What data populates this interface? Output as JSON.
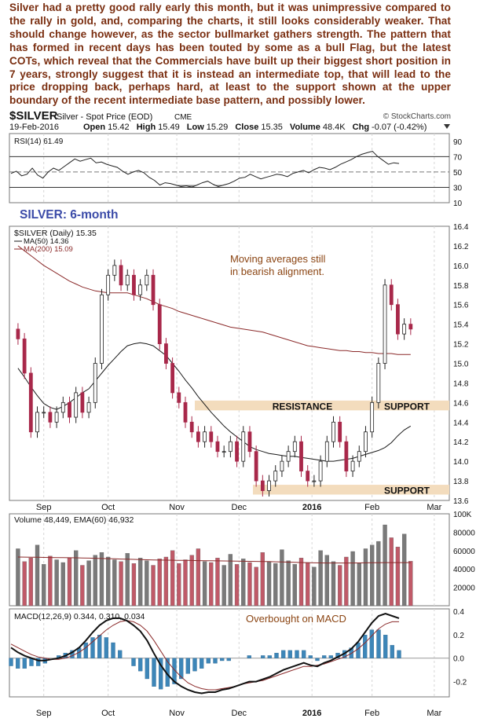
{
  "commentary": "Silver had a pretty good rally early this month, but it was unimpressive compared to the rally in gold, and, comparing the charts, it still looks considerably weaker. That should change however, as the sector bullmarket gathers strength. The pattern that has formed in recent days has been touted by some as a bull Flag, but the latest COTs, which reveal that the Commercials have built up their biggest short position in 7 years, strongly suggest that it is instead an intermediate top, that will lead to the price dropping back, perhaps hard, at least to the support shown at the upper boundary of the recent intermediate base pattern, and possibly lower.",
  "header": {
    "symbol": "$SILVER",
    "description": "Silver - Spot Price (EOD)",
    "exchange": "CME",
    "copyright": "© StockCharts.com",
    "date": "19-Feb-2016",
    "open_label": "Open",
    "open": "15.42",
    "high_label": "High",
    "high": "15.49",
    "low_label": "Low",
    "low": "15.29",
    "close_label": "Close",
    "close": "15.35",
    "volume_label": "Volume",
    "volume": "48.4K",
    "chg_label": "Chg",
    "chg": "-0.07 (-0.42%)"
  },
  "colors": {
    "up": "#222222",
    "down": "#a8284a",
    "ma50": "#1a1a1a",
    "ma200": "#8b2a2a",
    "band": "#f3dcbd",
    "annotation": "#8b4513",
    "title": "#3b4ba8",
    "vol_up": "#7a7a7a",
    "vol_down": "#c05a68",
    "macd_hist": "#3d86b8",
    "grid": "#d6d6d6"
  },
  "chart_data": [
    {
      "type": "line",
      "label": "RSI(14) 61.49",
      "ylim": [
        10,
        100
      ],
      "yticks": [
        10,
        30,
        50,
        70,
        90
      ],
      "levels": [
        70,
        50,
        30
      ],
      "series": [
        {
          "name": "RSI(14)",
          "values": [
            48,
            51,
            45,
            47,
            55,
            46,
            42,
            50,
            55,
            52,
            57,
            62,
            67,
            64,
            66,
            68,
            62,
            63,
            60,
            58,
            56,
            51,
            47,
            50,
            52,
            49,
            43,
            39,
            33,
            36,
            35,
            33,
            31,
            32,
            30,
            33,
            36,
            38,
            34,
            31,
            33,
            35,
            38,
            42,
            43,
            47,
            44,
            41,
            43,
            45,
            47,
            46,
            44,
            48,
            50,
            52,
            49,
            53,
            56,
            55,
            53,
            56,
            60,
            63,
            66,
            70,
            73,
            75,
            77,
            70,
            65,
            60,
            62,
            61
          ]
        }
      ]
    },
    {
      "type": "candlestick",
      "title": "SILVER: 6-month",
      "label": "$SILVER (Daily) 15.35",
      "ylim": [
        13.6,
        16.4
      ],
      "yticks": [
        13.6,
        13.8,
        14.0,
        14.2,
        14.4,
        14.6,
        14.8,
        15.0,
        15.2,
        15.4,
        15.6,
        15.8,
        16.0,
        16.2,
        16.4
      ],
      "x_labels": [
        "Sep",
        "Oct",
        "Nov",
        "Dec",
        "2016",
        "Feb",
        "Mar"
      ],
      "x_label_dates": [
        "2015-09-01",
        "2015-10-01",
        "2015-11-02",
        "2015-12-01",
        "2016-01-04",
        "2016-02-01",
        "2016-03-01"
      ],
      "dates": [
        "2015-08-20",
        "2015-08-23",
        "2015-08-26",
        "2015-08-29",
        "2015-09-01",
        "2015-09-04",
        "2015-09-07",
        "2015-09-10",
        "2015-09-13",
        "2015-09-16",
        "2015-09-19",
        "2015-09-22",
        "2015-09-25",
        "2015-09-28",
        "2015-10-01",
        "2015-10-04",
        "2015-10-07",
        "2015-10-10",
        "2015-10-13",
        "2015-10-16",
        "2015-10-19",
        "2015-10-22",
        "2015-10-25",
        "2015-10-28",
        "2015-10-31",
        "2015-11-03",
        "2015-11-06",
        "2015-11-09",
        "2015-11-12",
        "2015-11-15",
        "2015-11-18",
        "2015-11-21",
        "2015-11-24",
        "2015-11-27",
        "2015-11-30",
        "2015-12-03",
        "2015-12-06",
        "2015-12-09",
        "2015-12-12",
        "2015-12-15",
        "2015-12-18",
        "2015-12-21",
        "2015-12-24",
        "2015-12-27",
        "2015-12-30",
        "2016-01-02",
        "2016-01-05",
        "2016-01-08",
        "2016-01-11",
        "2016-01-14",
        "2016-01-17",
        "2016-01-20",
        "2016-01-23",
        "2016-01-26",
        "2016-01-29",
        "2016-02-01",
        "2016-02-04",
        "2016-02-07",
        "2016-02-10",
        "2016-02-13",
        "2016-02-16",
        "2016-02-19"
      ],
      "close": [
        15.25,
        14.9,
        14.3,
        14.5,
        14.5,
        14.4,
        14.5,
        14.6,
        14.45,
        14.7,
        14.5,
        14.6,
        15.0,
        15.7,
        15.9,
        16.0,
        15.8,
        15.9,
        15.7,
        15.8,
        15.9,
        15.6,
        15.2,
        15.0,
        14.7,
        14.6,
        14.4,
        14.3,
        14.2,
        14.3,
        14.2,
        14.1,
        14.1,
        14.2,
        14.0,
        14.3,
        14.1,
        13.8,
        13.7,
        13.8,
        13.9,
        14.0,
        14.1,
        14.2,
        13.9,
        13.8,
        13.8,
        14.0,
        14.2,
        14.4,
        14.2,
        13.9,
        14.0,
        14.1,
        14.3,
        14.6,
        15.0,
        15.8,
        15.6,
        15.3,
        15.4,
        15.35
      ],
      "series": [
        {
          "name": "MA(50) 14.36",
          "values": [
            14.95,
            14.86,
            14.76,
            14.67,
            14.59,
            14.55,
            14.53,
            14.56,
            14.6,
            14.65,
            14.7,
            14.74,
            14.82,
            14.9,
            14.98,
            15.05,
            15.12,
            15.18,
            15.2,
            15.21,
            15.2,
            15.18,
            15.13,
            15.08,
            15.0,
            14.92,
            14.83,
            14.75,
            14.66,
            14.58,
            14.5,
            14.43,
            14.36,
            14.3,
            14.25,
            14.2,
            14.15,
            14.12,
            14.1,
            14.08,
            14.07,
            14.06,
            14.05,
            14.05,
            14.04,
            14.03,
            14.02,
            14.01,
            14.0,
            14.0,
            14.01,
            14.02,
            14.03,
            14.05,
            14.07,
            14.09,
            14.11,
            14.14,
            14.19,
            14.26,
            14.32,
            14.36
          ]
        },
        {
          "name": "MA(200) 15.09",
          "values": [
            16.2,
            16.15,
            16.1,
            16.05,
            16.0,
            15.96,
            15.92,
            15.88,
            15.84,
            15.81,
            15.78,
            15.76,
            15.74,
            15.73,
            15.72,
            15.72,
            15.72,
            15.72,
            15.7,
            15.68,
            15.66,
            15.63,
            15.6,
            15.58,
            15.56,
            15.53,
            15.51,
            15.49,
            15.47,
            15.45,
            15.43,
            15.41,
            15.39,
            15.37,
            15.36,
            15.35,
            15.34,
            15.33,
            15.32,
            15.3,
            15.28,
            15.26,
            15.24,
            15.22,
            15.2,
            15.18,
            15.17,
            15.16,
            15.15,
            15.14,
            15.13,
            15.13,
            15.12,
            15.12,
            15.11,
            15.11,
            15.1,
            15.1,
            15.1,
            15.09,
            15.09,
            15.09
          ]
        }
      ],
      "bands": [
        {
          "label": "RESISTANCE",
          "label_right": "SUPPORT",
          "low": 14.52,
          "high": 14.62
        },
        {
          "label_right": "SUPPORT",
          "low": 13.66,
          "high": 13.76
        }
      ],
      "annotation": "Moving averages still\nin bearish alignment."
    },
    {
      "type": "bar",
      "label": "Volume 48,449, EMA(60) 46,932",
      "ylim": [
        0,
        100000
      ],
      "yticks_labels": [
        "20000",
        "40000",
        "60000",
        "80000",
        "100K"
      ],
      "series": [
        {
          "name": "Volume",
          "values": [
            62000,
            48000,
            52000,
            66000,
            45000,
            54000,
            50000,
            47000,
            52000,
            60000,
            44000,
            49000,
            55000,
            58000,
            53000,
            50000,
            48000,
            57000,
            46000,
            52000,
            49000,
            44000,
            51000,
            53000,
            60000,
            46000,
            50000,
            55000,
            62000,
            48000,
            47000,
            52000,
            44000,
            56000,
            45000,
            51000,
            47000,
            42000,
            58000,
            48000,
            46000,
            61000,
            49000,
            45000,
            52000,
            47000,
            42000,
            60000,
            55000,
            48000,
            44000,
            53000,
            59000,
            46000,
            62000,
            66000,
            70000,
            88000,
            74000,
            64000,
            78000,
            48449
          ]
        },
        {
          "name": "EMA(60)",
          "values": [
            53000,
            52900,
            52800,
            52700,
            52600,
            52500,
            52400,
            52300,
            52200,
            52100,
            52000,
            51800,
            51600,
            51400,
            51200,
            51000,
            50800,
            50600,
            50400,
            50200,
            50000,
            49800,
            49700,
            49600,
            49500,
            49400,
            49300,
            49200,
            49100,
            49000,
            48900,
            48800,
            48700,
            48600,
            48500,
            48400,
            48300,
            48200,
            48100,
            48000,
            47800,
            47600,
            47400,
            47200,
            47000,
            46800,
            46700,
            46600,
            46500,
            46500,
            46500,
            46500,
            46500,
            46600,
            46700,
            46800,
            46800,
            46900,
            46900,
            46900,
            46900,
            46932
          ]
        }
      ]
    },
    {
      "type": "line",
      "label": "MACD(12,26,9) 0.344, 0.310, 0.034",
      "annotation": "Overbought on MACD",
      "ylim": [
        -0.33,
        0.42
      ],
      "yticks": [
        -0.2,
        0.0,
        0.2,
        0.4
      ],
      "series": [
        {
          "name": "MACD",
          "values": [
            0.09,
            0.05,
            0.02,
            0.0,
            -0.02,
            -0.02,
            -0.01,
            0.0,
            0.02,
            0.05,
            0.09,
            0.15,
            0.22,
            0.28,
            0.32,
            0.34,
            0.34,
            0.32,
            0.28,
            0.23,
            0.15,
            0.04,
            -0.06,
            -0.14,
            -0.2,
            -0.24,
            -0.27,
            -0.29,
            -0.3,
            -0.29,
            -0.29,
            -0.27,
            -0.26,
            -0.24,
            -0.22,
            -0.2,
            -0.2,
            -0.18,
            -0.16,
            -0.13,
            -0.1,
            -0.08,
            -0.06,
            -0.04,
            -0.06,
            -0.07,
            -0.04,
            -0.02,
            0.01,
            0.04,
            0.08,
            0.14,
            0.22,
            0.3,
            0.36,
            0.38,
            0.36,
            0.34
          ]
        },
        {
          "name": "Signal",
          "values": [
            0.12,
            0.09,
            0.06,
            0.03,
            0.01,
            0.0,
            -0.01,
            -0.01,
            0.0,
            0.02,
            0.05,
            0.09,
            0.14,
            0.19,
            0.24,
            0.28,
            0.31,
            0.32,
            0.31,
            0.28,
            0.23,
            0.15,
            0.06,
            -0.03,
            -0.1,
            -0.16,
            -0.21,
            -0.24,
            -0.26,
            -0.27,
            -0.27,
            -0.26,
            -0.25,
            -0.24,
            -0.22,
            -0.21,
            -0.2,
            -0.19,
            -0.17,
            -0.15,
            -0.13,
            -0.11,
            -0.09,
            -0.07,
            -0.07,
            -0.06,
            -0.05,
            -0.03,
            -0.01,
            0.01,
            0.04,
            0.08,
            0.13,
            0.19,
            0.25,
            0.29,
            0.31,
            0.31
          ]
        }
      ]
    }
  ]
}
